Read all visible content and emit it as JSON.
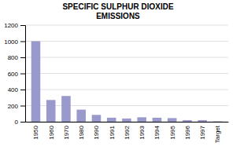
{
  "chart_data": {
    "type": "bar",
    "title": "SPECIFIC SULPHUR DIOXIDE\nEMISSIONS",
    "categories": [
      "1950",
      "1960",
      "1970",
      "1980",
      "1990",
      "1991",
      "1992",
      "1993",
      "1994",
      "1995",
      "1996",
      "1997",
      "Target"
    ],
    "values": [
      1000,
      270,
      320,
      150,
      85,
      50,
      40,
      55,
      50,
      45,
      20,
      20,
      5
    ],
    "color": "#9999cc",
    "ylim": [
      0,
      1200
    ],
    "yticks": [
      0,
      200,
      400,
      600,
      800,
      1000,
      1200
    ],
    "grid": true
  }
}
